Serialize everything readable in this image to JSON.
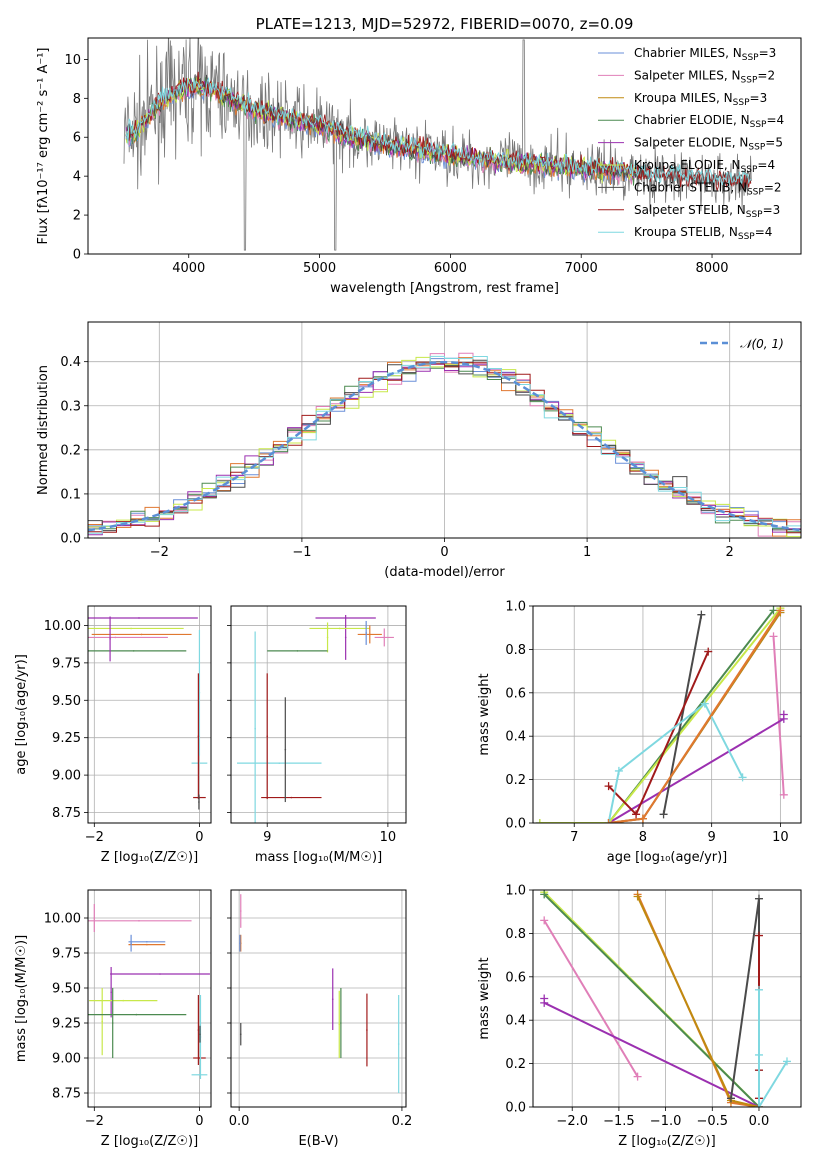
{
  "colors": {
    "Chabrier MILES": "#6a8fd8",
    "Salpeter MILES": "#e07fb8",
    "Kroupa MILES": "#c08a10",
    "Chabrier ELODIE": "#4c8a50",
    "Salpeter ELODIE": "#9b30b0",
    "Kroupa ELODIE": "#c8e84a",
    "Chabrier STELIB": "#4a4a4a",
    "Salpeter STELIB": "#a01a1a",
    "Kroupa STELIB": "#7fd8e0",
    "dr": "#e07830"
  },
  "chart_data": [
    {
      "id": "spectrum",
      "type": "line",
      "title": "PLATE=1213, MJD=52972, FIBERID=0070, z=0.09",
      "xlabel": "wavelength [Angstrom, rest frame]",
      "ylabel": "Flux [fλ10⁻¹⁷ erg cm⁻² s⁻¹ A⁻¹]",
      "xlim": [
        3230,
        8680
      ],
      "ylim": [
        0,
        11.1
      ],
      "xticks": [
        "4000",
        "5000",
        "6000",
        "7000",
        "8000"
      ],
      "yticks": [
        "0",
        "2",
        "4",
        "6",
        "8",
        "10"
      ],
      "legend_position": "upper-right",
      "legend": [
        {
          "series": "Chabrier MILES",
          "label": "Chabrier MILES, N",
          "sub": "SSP",
          "tail": "=3"
        },
        {
          "series": "Salpeter MILES",
          "label": "Salpeter MILES, N",
          "sub": "SSP",
          "tail": "=2"
        },
        {
          "series": "Kroupa MILES",
          "label": "Kroupa MILES, N",
          "sub": "SSP",
          "tail": "=3"
        },
        {
          "series": "Chabrier ELODIE",
          "label": "Chabrier ELODIE, N",
          "sub": "SSP",
          "tail": "=4"
        },
        {
          "series": "Salpeter ELODIE",
          "label": "Salpeter ELODIE, N",
          "sub": "SSP",
          "tail": "=5"
        },
        {
          "series": "Kroupa ELODIE",
          "label": "Kroupa ELODIE, N",
          "sub": "SSP",
          "tail": "=4"
        },
        {
          "series": "Chabrier STELIB",
          "label": "Chabrier STELIB, N",
          "sub": "SSP",
          "tail": "=2"
        },
        {
          "series": "Salpeter STELIB",
          "label": "Salpeter STELIB, N",
          "sub": "SSP",
          "tail": "=3"
        },
        {
          "series": "Kroupa STELIB",
          "label": "Kroupa STELIB, N",
          "sub": "SSP",
          "tail": "=4"
        }
      ],
      "continuum": {
        "x": [
          3500,
          3600,
          3700,
          3800,
          3900,
          4000,
          4100,
          4200,
          4300,
          4500,
          4700,
          4900,
          5000,
          5200,
          5500,
          5800,
          6000,
          6300,
          6500,
          6700,
          7000,
          7200,
          7400,
          7600,
          8000,
          8300
        ],
        "y": [
          6.0,
          6.3,
          7.1,
          7.9,
          8.3,
          8.6,
          8.6,
          8.4,
          8.0,
          7.4,
          7.1,
          6.7,
          6.6,
          6.1,
          5.6,
          5.3,
          5.1,
          4.8,
          4.7,
          4.6,
          4.4,
          4.3,
          4.2,
          4.0,
          3.8,
          3.7
        ]
      }
    },
    {
      "id": "residuals",
      "type": "line",
      "xlabel": "(data-model)/error",
      "ylabel": "Normed distribution",
      "xlim": [
        -2.5,
        2.5
      ],
      "ylim": [
        0,
        0.49
      ],
      "xticks": [
        "−2",
        "−1",
        "0",
        "1",
        "2"
      ],
      "yticks": [
        "0.0",
        "0.1",
        "0.2",
        "0.3",
        "0.4"
      ],
      "legend_label": "𝒩(0, 1)",
      "bin_width": 0.1,
      "histogram_series": [
        "Chabrier MILES",
        "Salpeter MILES",
        "dr",
        "Chabrier ELODIE",
        "Salpeter ELODIE",
        "Kroupa ELODIE",
        "Chabrier STELIB",
        "Salpeter STELIB",
        "Kroupa STELIB"
      ]
    },
    {
      "id": "age-Z",
      "type": "scatter",
      "xlabel": "Z [log₁₀(Z/Z☉)]",
      "ylabel": "age  [log₁₀(age/yr)]",
      "xlim": [
        -2.12,
        0.22
      ],
      "ylim": [
        8.68,
        10.13
      ],
      "xticks": [
        "−2",
        "0"
      ],
      "yticks": [
        "8.75",
        "9.00",
        "9.25",
        "9.50",
        "9.75",
        "10.00"
      ],
      "points": [
        {
          "s": "Salpeter ELODIE",
          "x": -1.15,
          "xe": 1.12,
          "y": 10.05,
          "ye": 0.0
        },
        {
          "s": "Salpeter MILES",
          "x": -1.6,
          "xe": 1.0,
          "y": 9.92,
          "ye": 0.0
        },
        {
          "s": "Kroupa ELODIE",
          "x": -1.3,
          "xe": 1.0,
          "y": 9.98,
          "ye": 0.0
        },
        {
          "s": "dr",
          "x": -1.1,
          "xe": 0.95,
          "y": 9.94,
          "ye": 0.0
        },
        {
          "s": "Chabrier ELODIE",
          "x": -1.25,
          "xe": 1.0,
          "y": 9.83,
          "ye": 0.0
        },
        {
          "s": "Salpeter ELODIE",
          "x": -1.7,
          "xe": 0.0,
          "y": 9.91,
          "ye": 0.15
        },
        {
          "s": "Kroupa STELIB",
          "x": 0.0,
          "xe": 0.0,
          "y": 9.55,
          "ye": 0.42
        },
        {
          "s": "Kroupa STELIB",
          "x": 0.0,
          "xe": 0.15,
          "y": 9.08,
          "ye": 0.0
        },
        {
          "s": "Salpeter STELIB",
          "x": -0.02,
          "xe": 0.0,
          "y": 9.26,
          "ye": 0.42
        },
        {
          "s": "Salpeter STELIB",
          "x": 0.0,
          "xe": 0.12,
          "y": 8.85,
          "ye": 0.0
        },
        {
          "s": "Chabrier STELIB",
          "x": -0.01,
          "xe": 0.0,
          "y": 8.82,
          "ye": 0.05
        }
      ]
    },
    {
      "id": "age-mass",
      "type": "scatter",
      "xlabel": "mass [log₁₀(M/M☉)]",
      "xlim": [
        8.7,
        10.15
      ],
      "ylim": [
        8.68,
        10.13
      ],
      "xticks": [
        "9",
        "10"
      ],
      "yticks": [],
      "points": [
        {
          "s": "Salpeter ELODIE",
          "x": 9.65,
          "xe": 0.25,
          "y": 10.05,
          "ye": 0.0
        },
        {
          "s": "Salpeter ELODIE",
          "x": 9.65,
          "xe": 0.0,
          "y": 9.92,
          "ye": 0.15
        },
        {
          "s": "Kroupa ELODIE",
          "x": 9.6,
          "xe": 0.25,
          "y": 9.98,
          "ye": 0.0
        },
        {
          "s": "Kroupa ELODIE",
          "x": 9.5,
          "xe": 0.0,
          "y": 9.92,
          "ye": 0.1
        },
        {
          "s": "Chabrier ELODIE",
          "x": 9.25,
          "xe": 0.25,
          "y": 9.83,
          "ye": 0.0
        },
        {
          "s": "dr",
          "x": 9.85,
          "xe": 0.1,
          "y": 9.94,
          "ye": 0.06
        },
        {
          "s": "Chabrier MILES",
          "x": 9.82,
          "xe": 0.0,
          "y": 9.95,
          "ye": 0.08
        },
        {
          "s": "Salpeter MILES",
          "x": 9.97,
          "xe": 0.08,
          "y": 9.92,
          "ye": 0.06
        },
        {
          "s": "Kroupa STELIB",
          "x": 9.1,
          "xe": 0.35,
          "y": 9.08,
          "ye": 0.0
        },
        {
          "s": "Kroupa STELIB",
          "x": 8.9,
          "xe": 0.0,
          "y": 9.31,
          "ye": 0.65
        },
        {
          "s": "Salpeter STELIB",
          "x": 9.0,
          "xe": 0.0,
          "y": 9.26,
          "ye": 0.42
        },
        {
          "s": "Salpeter STELIB",
          "x": 9.2,
          "xe": 0.25,
          "y": 8.85,
          "ye": 0.0
        },
        {
          "s": "Chabrier STELIB",
          "x": 9.15,
          "xe": 0.0,
          "y": 9.17,
          "ye": 0.35
        }
      ]
    },
    {
      "id": "weight-age",
      "type": "line",
      "xlabel": "age  [log₁₀(age/yr)]",
      "ylabel": "mass weight",
      "xlim": [
        6.4,
        10.3
      ],
      "ylim": [
        0,
        1.0
      ],
      "xticks": [
        "7",
        "8",
        "9",
        "10"
      ],
      "yticks": [
        "0.0",
        "0.2",
        "0.4",
        "0.6",
        "0.8",
        "1.0"
      ],
      "series": [
        {
          "s": "Chabrier MILES",
          "x": [
            7.5,
            8.0,
            10.0
          ],
          "y": [
            0.0,
            0.02,
            0.97
          ]
        },
        {
          "s": "Salpeter MILES",
          "x": [
            9.9,
            10.05
          ],
          "y": [
            0.86,
            0.13
          ]
        },
        {
          "s": "Kroupa MILES",
          "x": [
            7.5,
            8.0,
            10.0
          ],
          "y": [
            0.0,
            0.02,
            0.97
          ]
        },
        {
          "s": "Chabrier ELODIE",
          "x": [
            6.5,
            7.5,
            9.9
          ],
          "y": [
            0.0,
            0.0,
            0.98
          ]
        },
        {
          "s": "Salpeter ELODIE",
          "x": [
            7.5,
            10.05
          ],
          "y": [
            0.0,
            0.48
          ]
        },
        {
          "s": "Salpeter ELODIE",
          "x": [
            10.05
          ],
          "y": [
            0.5
          ]
        },
        {
          "s": "Kroupa ELODIE",
          "x": [
            6.5,
            7.5,
            10.0
          ],
          "y": [
            0.0,
            0.0,
            0.99
          ]
        },
        {
          "s": "Chabrier STELIB",
          "x": [
            8.3,
            8.85
          ],
          "y": [
            0.04,
            0.96
          ]
        },
        {
          "s": "Salpeter STELIB",
          "x": [
            7.5,
            7.9,
            8.95
          ],
          "y": [
            0.17,
            0.04,
            0.79
          ]
        },
        {
          "s": "Kroupa STELIB",
          "x": [
            7.5,
            7.65,
            8.9,
            9.45
          ],
          "y": [
            0.0,
            0.24,
            0.55,
            0.21
          ]
        },
        {
          "s": "dr",
          "x": [
            7.5,
            8.0,
            10.0
          ],
          "y": [
            0.0,
            0.02,
            0.98
          ]
        }
      ]
    },
    {
      "id": "mass-Z",
      "type": "scatter",
      "xlabel": "Z [log₁₀(Z/Z☉)]",
      "ylabel": "mass [log₁₀(M/M☉)]",
      "xlim": [
        -2.12,
        0.22
      ],
      "ylim": [
        8.65,
        10.2
      ],
      "xticks": [
        "−2",
        "0"
      ],
      "yticks": [
        "8.75",
        "9.00",
        "9.25",
        "9.50",
        "9.75",
        "10.00"
      ],
      "points": [
        {
          "s": "Salpeter MILES",
          "x": -1.15,
          "xe": 1.0,
          "y": 9.98,
          "ye": 0.0
        },
        {
          "s": "Salpeter MILES",
          "x": -2.0,
          "xe": 0.0,
          "y": 10.0,
          "ye": 0.1
        },
        {
          "s": "Chabrier MILES",
          "x": -1.0,
          "xe": 0.35,
          "y": 9.83,
          "ye": 0.0
        },
        {
          "s": "dr",
          "x": -1.0,
          "xe": 0.35,
          "y": 9.81,
          "ye": 0.0
        },
        {
          "s": "Chabrier MILES",
          "x": -1.3,
          "xe": 0.0,
          "y": 9.82,
          "ye": 0.06
        },
        {
          "s": "Salpeter ELODIE",
          "x": -0.75,
          "xe": 0.95,
          "y": 9.6,
          "ye": 0.0
        },
        {
          "s": "Salpeter ELODIE",
          "x": -1.68,
          "xe": 0.0,
          "y": 9.47,
          "ye": 0.18
        },
        {
          "s": "Kroupa ELODIE",
          "x": -1.45,
          "xe": 0.65,
          "y": 9.41,
          "ye": 0.0
        },
        {
          "s": "Kroupa ELODIE",
          "x": -1.85,
          "xe": 0.0,
          "y": 9.26,
          "ye": 0.24
        },
        {
          "s": "Chabrier ELODIE",
          "x": -1.2,
          "xe": 0.95,
          "y": 9.31,
          "ye": 0.0
        },
        {
          "s": "Chabrier ELODIE",
          "x": -1.65,
          "xe": 0.0,
          "y": 9.25,
          "ye": 0.25
        },
        {
          "s": "Salpeter STELIB",
          "x": 0.0,
          "xe": 0.12,
          "y": 9.0,
          "ye": 0.0
        },
        {
          "s": "Salpeter STELIB",
          "x": -0.02,
          "xe": 0.0,
          "y": 9.2,
          "ye": 0.25
        },
        {
          "s": "Kroupa STELIB",
          "x": 0.0,
          "xe": 0.15,
          "y": 8.88,
          "ye": 0.0
        },
        {
          "s": "Kroupa STELIB",
          "x": 0.02,
          "xe": 0.0,
          "y": 9.15,
          "ye": 0.3
        },
        {
          "s": "Chabrier STELIB",
          "x": 0.01,
          "xe": 0.0,
          "y": 9.17,
          "ye": 0.06
        }
      ]
    },
    {
      "id": "mass-EBV",
      "type": "scatter",
      "xlabel": "E(B-V)",
      "xlim": [
        -0.01,
        0.205
      ],
      "ylim": [
        8.65,
        10.2
      ],
      "xticks": [
        "0.0",
        "0.2"
      ],
      "yticks": [],
      "points": [
        {
          "s": "Salpeter MILES",
          "x": 0.002,
          "xe": 0.0,
          "y": 10.05,
          "ye": 0.12
        },
        {
          "s": "dr",
          "x": 0.002,
          "xe": 0.0,
          "y": 9.82,
          "ye": 0.06
        },
        {
          "s": "Chabrier MILES",
          "x": 0.001,
          "xe": 0.0,
          "y": 9.82,
          "ye": 0.06
        },
        {
          "s": "Chabrier STELIB",
          "x": 0.002,
          "xe": 0.0,
          "y": 9.17,
          "ye": 0.08
        },
        {
          "s": "Salpeter ELODIE",
          "x": 0.115,
          "xe": 0.0,
          "y": 9.42,
          "ye": 0.22
        },
        {
          "s": "Kroupa ELODIE",
          "x": 0.123,
          "xe": 0.0,
          "y": 9.24,
          "ye": 0.24
        },
        {
          "s": "Chabrier ELODIE",
          "x": 0.125,
          "xe": 0.0,
          "y": 9.25,
          "ye": 0.25
        },
        {
          "s": "Salpeter STELIB",
          "x": 0.157,
          "xe": 0.0,
          "y": 9.2,
          "ye": 0.26
        },
        {
          "s": "Kroupa STELIB",
          "x": 0.196,
          "xe": 0.0,
          "y": 9.1,
          "ye": 0.35
        }
      ]
    },
    {
      "id": "weight-Z",
      "type": "line",
      "xlabel": "Z [log₁₀(Z/Z☉)]",
      "ylabel": "mass weight",
      "xlim": [
        -2.42,
        0.45
      ],
      "ylim": [
        0,
        1.0
      ],
      "xticks": [
        "−2.0",
        "−1.5",
        "−1.0",
        "−0.5",
        "0.0"
      ],
      "yticks": [
        "0.0",
        "0.2",
        "0.4",
        "0.6",
        "0.8",
        "1.0"
      ],
      "series": [
        {
          "s": "Kroupa ELODIE",
          "x": [
            -2.3,
            0.0
          ],
          "y": [
            0.99,
            0.0
          ]
        },
        {
          "s": "Chabrier ELODIE",
          "x": [
            -2.3,
            0.0
          ],
          "y": [
            0.98,
            0.0
          ]
        },
        {
          "s": "Salpeter MILES",
          "x": [
            -2.3,
            -1.3
          ],
          "y": [
            0.86,
            0.14
          ]
        },
        {
          "s": "Salpeter ELODIE",
          "x": [
            -2.3,
            0.0
          ],
          "y": [
            0.48,
            0.0
          ]
        },
        {
          "s": "Salpeter ELODIE",
          "x": [
            -2.3
          ],
          "y": [
            0.5
          ]
        },
        {
          "s": "dr",
          "x": [
            -1.3,
            -0.3,
            0.0
          ],
          "y": [
            0.98,
            0.02,
            0.0
          ]
        },
        {
          "s": "Kroupa MILES",
          "x": [
            -1.3,
            -0.3,
            0.0
          ],
          "y": [
            0.97,
            0.03,
            0.0
          ]
        },
        {
          "s": "Chabrier STELIB",
          "x": [
            -0.3,
            0.0,
            0.0
          ],
          "y": [
            0.04,
            0.96,
            0.17
          ]
        },
        {
          "s": "Salpeter STELIB",
          "x": [
            0.0,
            0.0,
            0.0
          ],
          "y": [
            0.79,
            0.04,
            0.17
          ]
        },
        {
          "s": "Kroupa STELIB",
          "x": [
            0.0,
            0.0,
            0.0,
            0.3
          ],
          "y": [
            0.24,
            0.54,
            0.0,
            0.21
          ]
        }
      ]
    }
  ]
}
